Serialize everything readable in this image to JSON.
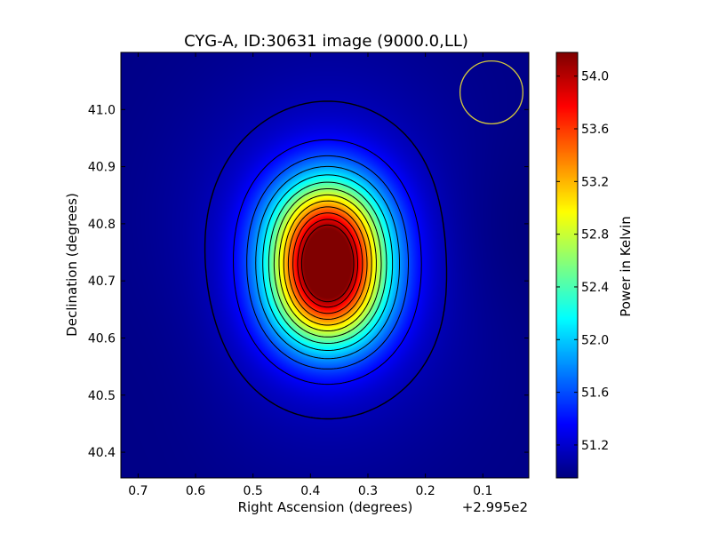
{
  "chart_data": {
    "type": "heatmap",
    "title": "CYG-A, ID:30631 image (9000.0,LL)",
    "xlabel": "Right Ascension (degrees)",
    "ylabel": "Declination (degrees)",
    "x_offset_label": "+2.995e2",
    "x_reversed": true,
    "xlim": [
      0.73,
      0.02
    ],
    "ylim": [
      40.355,
      41.1
    ],
    "x_ticks": [
      "0.7",
      "0.6",
      "0.5",
      "0.4",
      "0.3",
      "0.2",
      "0.1"
    ],
    "x_tick_values": [
      0.7,
      0.6,
      0.5,
      0.4,
      0.3,
      0.2,
      0.1
    ],
    "y_ticks": [
      "40.4",
      "40.5",
      "40.6",
      "40.7",
      "40.8",
      "40.9",
      "41.0"
    ],
    "y_tick_values": [
      40.4,
      40.5,
      40.6,
      40.7,
      40.8,
      40.9,
      41.0
    ],
    "colorbar": {
      "label": "Power in Kelvin",
      "range": [
        50.95,
        54.18
      ],
      "ticks": [
        "51.2",
        "51.6",
        "52.0",
        "52.4",
        "52.8",
        "53.2",
        "53.6",
        "54.0"
      ],
      "tick_values": [
        51.2,
        51.6,
        52.0,
        52.4,
        52.8,
        53.2,
        53.6,
        54.0
      ],
      "colormap": "jet"
    },
    "sources": [
      {
        "ra": 0.37,
        "dec": 40.785,
        "peak": 54.0
      },
      {
        "ra": 0.37,
        "dec": 40.68,
        "peak": 54.15
      }
    ],
    "background_level": 50.97,
    "contour_levels": [
      51.12,
      51.35,
      51.6,
      51.85,
      52.1,
      52.35,
      52.6,
      52.85,
      53.1,
      53.35,
      53.6,
      53.85,
      54.05
    ],
    "beam_circle": {
      "ra": 0.085,
      "dec": 41.03,
      "radius_deg": 0.055,
      "color": "#d4c83c"
    }
  }
}
